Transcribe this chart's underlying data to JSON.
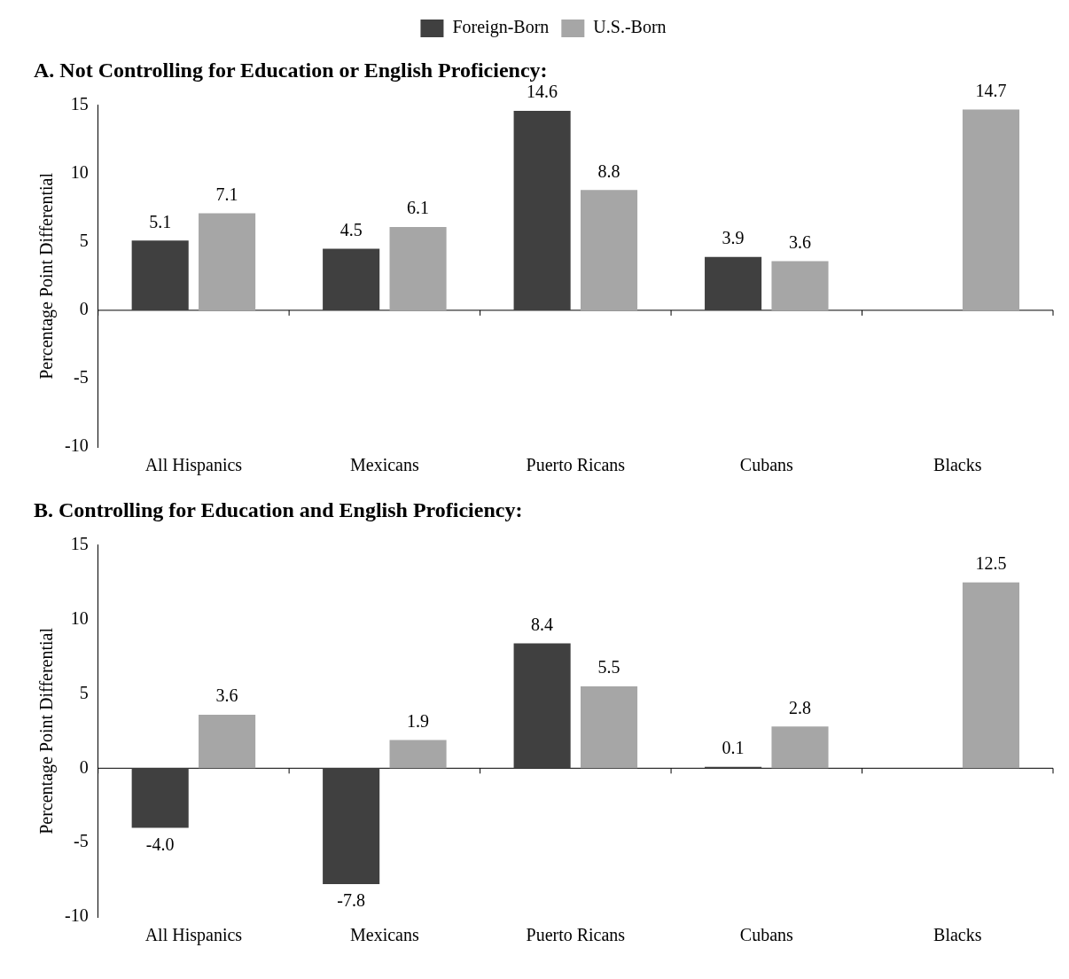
{
  "chart_data": [
    {
      "type": "bar",
      "title": "A. Not Controlling for Education or English Proficiency:",
      "ylabel": "Percentage Point Differential",
      "categories": [
        "All Hispanics",
        "Mexicans",
        "Puerto Ricans",
        "Cubans",
        "Blacks"
      ],
      "series": [
        {
          "name": "Foreign-Born",
          "color": "#404040",
          "values": [
            5.1,
            4.5,
            14.6,
            3.9,
            null
          ],
          "value_labels": [
            "5.1",
            "4.5",
            "14.6",
            "3.9",
            null
          ]
        },
        {
          "name": "U.S.-Born",
          "color": "#a6a6a6",
          "values": [
            7.1,
            6.1,
            8.8,
            3.6,
            14.7
          ],
          "value_labels": [
            "7.1",
            "6.1",
            "8.8",
            "3.6",
            "14.7"
          ]
        }
      ],
      "ylim": [
        -10,
        15
      ],
      "yticks": [
        -10,
        -5,
        0,
        5,
        10,
        15
      ],
      "grid": false,
      "legend": "top",
      "ref_lines": [
        {
          "axis": "y",
          "value": 0
        }
      ]
    },
    {
      "type": "bar",
      "title": "B. Controlling for Education and English Proficiency:",
      "ylabel": "Percentage Point Differential",
      "categories": [
        "All Hispanics",
        "Mexicans",
        "Puerto Ricans",
        "Cubans",
        "Blacks"
      ],
      "series": [
        {
          "color": "#404040",
          "values": [
            -4.0,
            -7.8,
            8.4,
            0.1,
            null
          ],
          "value_labels": [
            "-4.0",
            "-7.8",
            "8.4",
            "0.1",
            null
          ]
        },
        {
          "color": "#a6a6a6",
          "values": [
            3.6,
            1.9,
            5.5,
            2.8,
            12.5
          ],
          "value_labels": [
            "3.6",
            "1.9",
            "5.5",
            "2.8",
            "12.5"
          ]
        }
      ],
      "ylim": [
        -10,
        15
      ],
      "yticks": [
        -10,
        -5,
        0,
        5,
        10,
        15
      ],
      "grid": false,
      "legend": false,
      "ref_lines": [
        {
          "axis": "y",
          "value": 0
        }
      ]
    }
  ]
}
